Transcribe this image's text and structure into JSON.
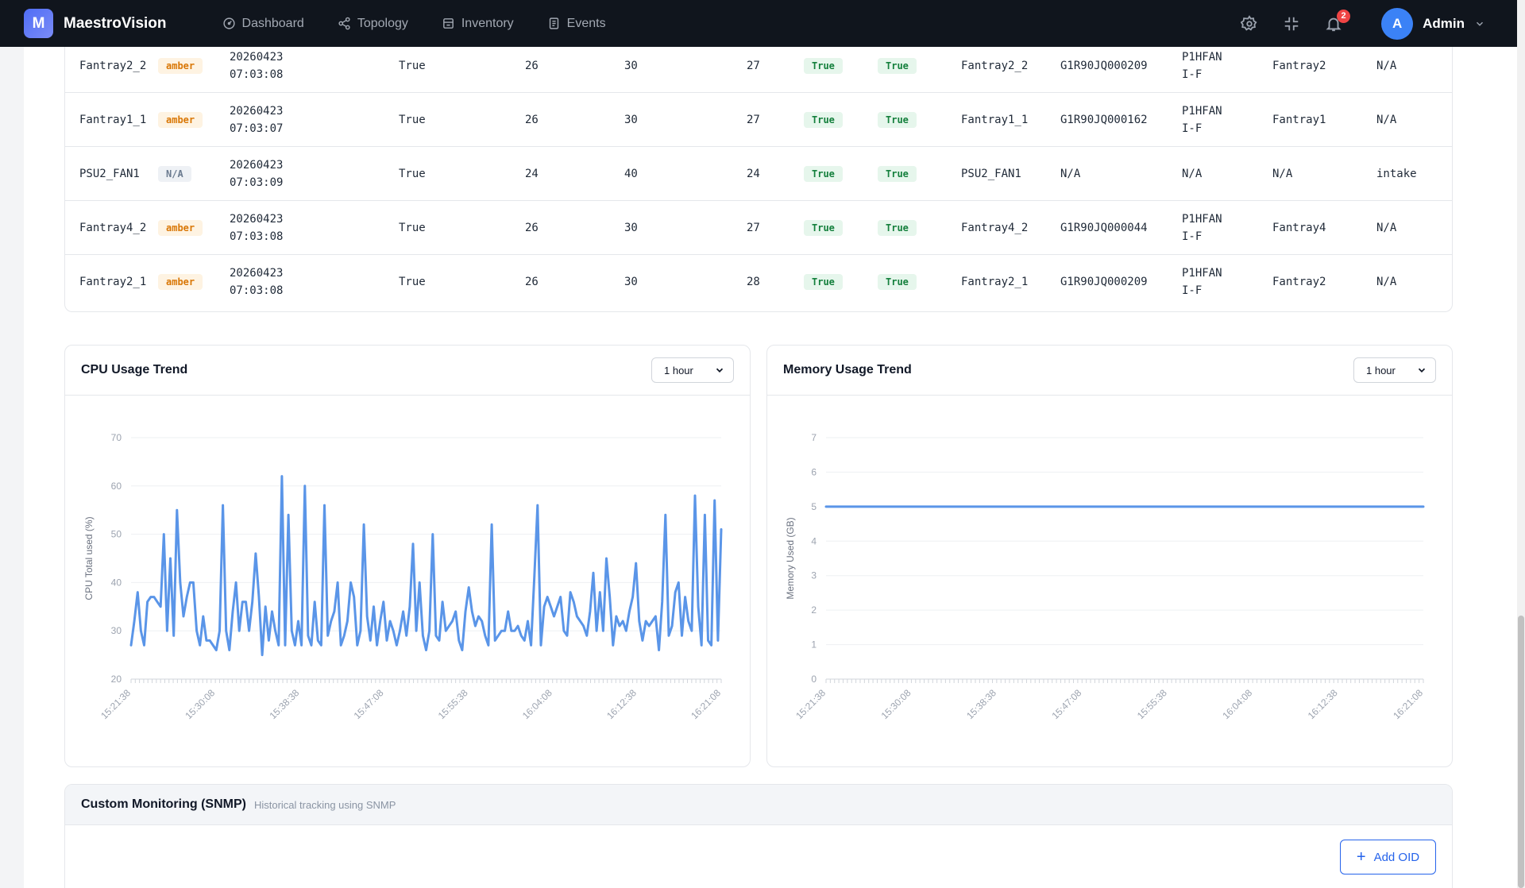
{
  "app": {
    "brand_letter": "M",
    "brand_name": "MaestroVision"
  },
  "nav": [
    {
      "label": "Dashboard",
      "icon": "dashboard-icon"
    },
    {
      "label": "Topology",
      "icon": "topology-icon"
    },
    {
      "label": "Inventory",
      "icon": "inventory-icon"
    },
    {
      "label": "Events",
      "icon": "events-icon"
    }
  ],
  "header": {
    "notification_count": "2",
    "user_initial": "A",
    "user_name": "Admin"
  },
  "fan_table": {
    "rows": [
      {
        "name": "Fantray2_2",
        "led": "amber",
        "date": "20260423",
        "time": "07:03:08",
        "presence": "True",
        "c1": "26",
        "c2": "30",
        "c3": "27",
        "status1": "True",
        "status2": "True",
        "model": "Fantray2_2",
        "serial": "G1R90JQ000209",
        "part1": "P1HFAN",
        "part2": "I-F",
        "tray": "Fantray2",
        "direction": "N/A"
      },
      {
        "name": "Fantray1_1",
        "led": "amber",
        "date": "20260423",
        "time": "07:03:07",
        "presence": "True",
        "c1": "26",
        "c2": "30",
        "c3": "27",
        "status1": "True",
        "status2": "True",
        "model": "Fantray1_1",
        "serial": "G1R90JQ000162",
        "part1": "P1HFAN",
        "part2": "I-F",
        "tray": "Fantray1",
        "direction": "N/A"
      },
      {
        "name": "PSU2_FAN1",
        "led": "N/A",
        "date": "20260423",
        "time": "07:03:09",
        "presence": "True",
        "c1": "24",
        "c2": "40",
        "c3": "24",
        "status1": "True",
        "status2": "True",
        "model": "PSU2_FAN1",
        "serial": "N/A",
        "part1": "N/A",
        "part2": "",
        "tray": "N/A",
        "direction": "intake"
      },
      {
        "name": "Fantray4_2",
        "led": "amber",
        "date": "20260423",
        "time": "07:03:08",
        "presence": "True",
        "c1": "26",
        "c2": "30",
        "c3": "27",
        "status1": "True",
        "status2": "True",
        "model": "Fantray4_2",
        "serial": "G1R90JQ000044",
        "part1": "P1HFAN",
        "part2": "I-F",
        "tray": "Fantray4",
        "direction": "N/A"
      },
      {
        "name": "Fantray2_1",
        "led": "amber",
        "date": "20260423",
        "time": "07:03:08",
        "presence": "True",
        "c1": "26",
        "c2": "30",
        "c3": "28",
        "status1": "True",
        "status2": "True",
        "model": "Fantray2_1",
        "serial": "G1R90JQ000209",
        "part1": "P1HFAN",
        "part2": "I-F",
        "tray": "Fantray2",
        "direction": "N/A"
      }
    ]
  },
  "cpu_panel": {
    "title": "CPU Usage Trend",
    "range": "1 hour"
  },
  "memory_panel": {
    "title": "Memory Usage Trend",
    "range": "1 hour"
  },
  "chart_data": [
    {
      "type": "line",
      "title": "CPU Usage Trend",
      "xlabel": "",
      "ylabel": "CPU Total used (%)",
      "ylim": [
        20,
        70
      ],
      "yticks": [
        20,
        30,
        40,
        50,
        60,
        70
      ],
      "xticks": [
        "15:21:38",
        "15:30:08",
        "15:38:38",
        "15:47:08",
        "15:55:38",
        "16:04:08",
        "16:12:38",
        "16:21:08"
      ],
      "x_start": "15:21:38",
      "x_end": "16:21:08",
      "grid": true,
      "color": "#5a95e8",
      "series": [
        {
          "values": [
            27,
            32,
            38,
            30,
            27,
            36,
            37,
            37,
            36,
            35,
            50,
            30,
            45,
            29,
            55,
            40,
            33,
            37,
            40,
            40,
            30,
            27,
            33,
            28,
            28,
            27,
            26,
            30,
            56,
            30,
            26,
            34,
            40,
            30,
            36,
            36,
            30,
            36,
            46,
            37,
            25,
            35,
            28,
            34,
            30,
            27,
            62,
            27,
            54,
            30,
            27,
            32,
            27,
            60,
            29,
            27,
            36,
            28,
            27,
            56,
            29,
            32,
            34,
            40,
            27,
            29,
            32,
            40,
            37,
            27,
            30,
            52,
            33,
            28,
            35,
            27,
            32,
            36,
            28,
            32,
            30,
            27,
            30,
            34,
            29,
            35,
            48,
            30,
            40,
            29,
            26,
            30,
            50,
            29,
            28,
            36,
            30,
            31,
            32,
            34,
            28,
            26,
            34,
            39,
            34,
            31,
            33,
            32,
            29,
            27,
            52,
            28,
            29,
            30,
            30,
            34,
            30,
            30,
            31,
            29,
            28,
            32,
            27,
            41,
            56,
            27,
            35,
            37,
            35,
            33,
            35,
            37,
            30,
            29,
            38,
            36,
            33,
            32,
            31,
            29,
            34,
            42,
            30,
            38,
            30,
            45,
            37,
            27,
            33,
            31,
            32,
            30,
            34,
            37,
            44,
            32,
            28,
            32,
            31,
            32,
            33,
            26,
            36,
            54,
            29,
            31,
            38,
            40,
            29,
            37,
            32,
            30,
            58,
            35,
            27,
            54,
            28,
            27,
            57,
            28,
            51
          ]
        }
      ]
    },
    {
      "type": "line",
      "title": "Memory Usage Trend",
      "xlabel": "",
      "ylabel": "Memory Used (GB)",
      "ylim": [
        0,
        7
      ],
      "yticks": [
        0,
        1,
        2,
        3,
        4,
        5,
        6,
        7
      ],
      "xticks": [
        "15:21:38",
        "15:30:08",
        "15:38:38",
        "15:47:08",
        "15:55:38",
        "16:04:08",
        "16:12:38",
        "16:21:08"
      ],
      "x_start": "15:21:38",
      "x_end": "16:21:08",
      "grid": true,
      "color": "#5a95e8",
      "series": [
        {
          "values": [
            5,
            5
          ]
        }
      ]
    }
  ],
  "snmp": {
    "title": "Custom Monitoring (SNMP)",
    "subtitle": "Historical tracking using SNMP",
    "add_label": "Add OID"
  }
}
